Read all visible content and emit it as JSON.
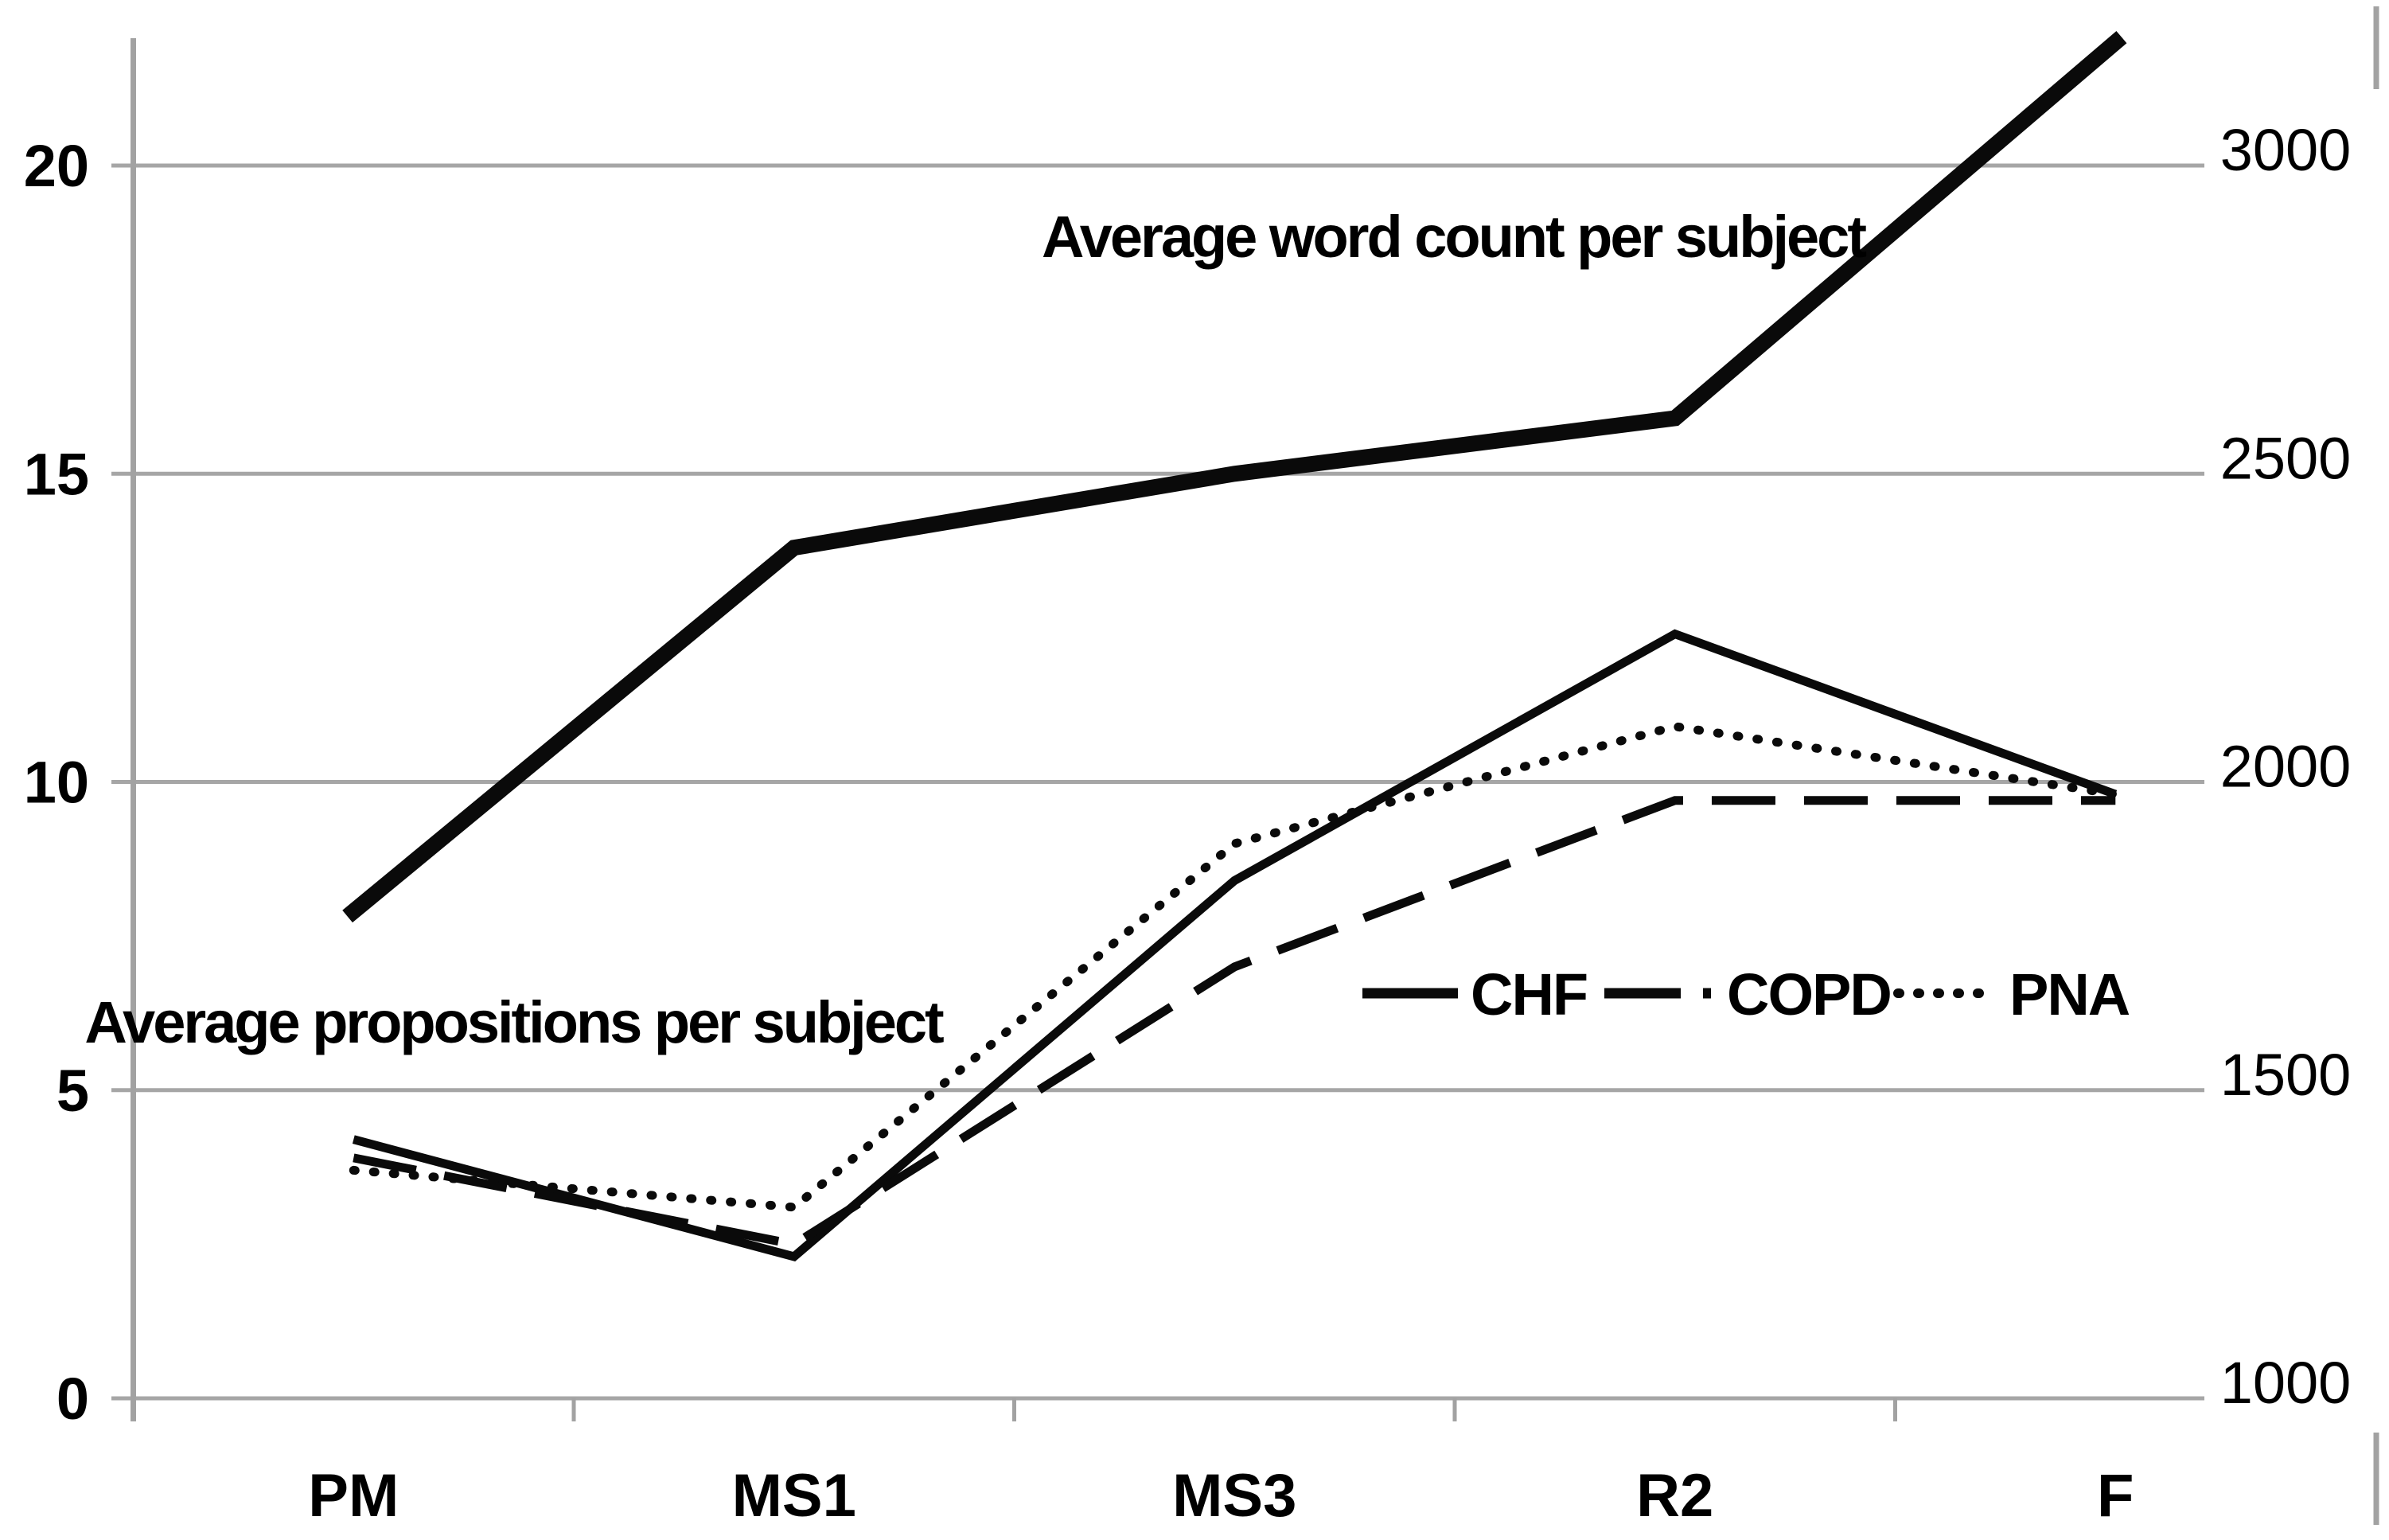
{
  "chart_data": {
    "type": "line",
    "categories": [
      "PM",
      "MS1",
      "MS3",
      "R2",
      "F"
    ],
    "left_axis": {
      "ticks": [
        0,
        5,
        10,
        15,
        20
      ],
      "range": [
        0,
        20
      ],
      "side": "left"
    },
    "right_axis": {
      "ticks": [
        1000,
        1500,
        2000,
        2500,
        3000
      ],
      "range": [
        1000,
        3000
      ],
      "side": "right"
    },
    "grid": true,
    "legend_position": "middle-right-inside",
    "annotations": [
      {
        "text": "Average word count per subject",
        "refers_to": "right-axis series"
      },
      {
        "text": "Average propositions per subject",
        "refers_to": "left-axis series"
      }
    ],
    "series": [
      {
        "name": "Average word count per subject",
        "axis": "right",
        "line": "thick-solid",
        "values": [
          1790,
          2380,
          2500,
          2590,
          3200
        ]
      },
      {
        "name": "CHF",
        "axis": "left",
        "line": "solid",
        "values": [
          4.2,
          2.3,
          8.4,
          12.4,
          9.8
        ]
      },
      {
        "name": "COPD",
        "axis": "left",
        "line": "dashed",
        "values": [
          3.9,
          2.5,
          7.0,
          9.7,
          9.7
        ]
      },
      {
        "name": "PNA",
        "axis": "left",
        "line": "dotted",
        "values": [
          3.7,
          3.1,
          9.0,
          10.9,
          9.8
        ]
      }
    ],
    "legend": [
      {
        "label": "CHF",
        "style": "solid"
      },
      {
        "label": "COPD",
        "style": "dashed"
      },
      {
        "label": "PNA",
        "style": "dotted"
      }
    ],
    "colors": {
      "line": "#0a0a0a",
      "grid": "#a6a6a6",
      "text": "#000000",
      "background": "#ffffff"
    }
  }
}
